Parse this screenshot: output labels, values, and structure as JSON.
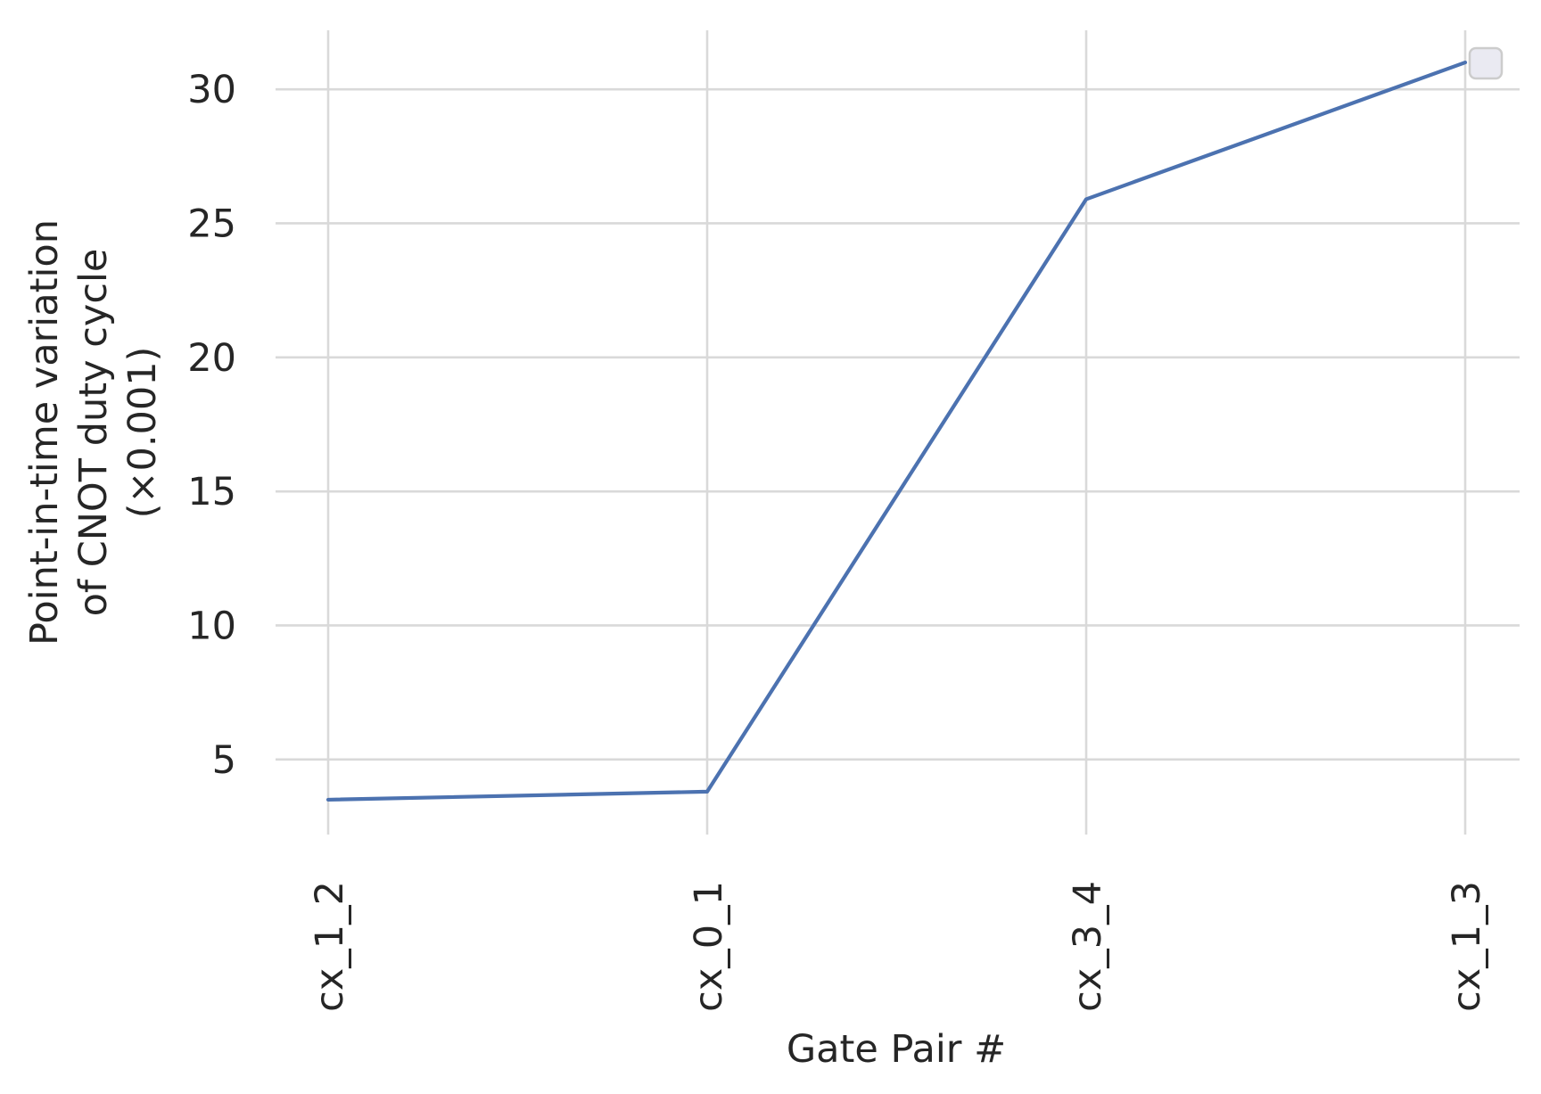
{
  "chart_data": {
    "type": "line",
    "categories": [
      "cx_1_2",
      "cx_0_1",
      "cx_3_4",
      "cx_1_3"
    ],
    "series": [
      {
        "values": [
          3.5,
          3.8,
          25.9,
          31.0
        ]
      }
    ],
    "title": "",
    "xlabel": "Gate Pair #",
    "ylabel_lines": [
      "Point-in-time variation",
      "of CNOT duty cycle",
      "(×0.001)"
    ],
    "yticks": [
      5,
      10,
      15,
      20,
      25,
      30
    ],
    "ytick_labels": [
      "5",
      "10",
      "15",
      "20",
      "25",
      "30"
    ],
    "ylim": [
      2.2,
      32.2
    ],
    "grid": true,
    "legend": {
      "placement": "top-right",
      "entries": []
    },
    "colors": {
      "series": "#4c72b0",
      "grid": "#d9d9d9",
      "text": "#262626",
      "legend_bg": "#eaeaf2",
      "legend_border": "#cccccc"
    }
  }
}
